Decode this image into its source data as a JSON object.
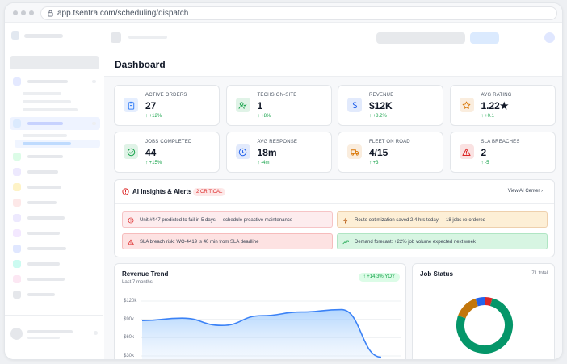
{
  "browser": {
    "url": "app.tsentra.com/scheduling/dispatch"
  },
  "page": {
    "title": "Dashboard"
  },
  "kpis": [
    {
      "label": "ACTIVE ORDERS",
      "value": "27",
      "change": "↑ +12%",
      "icon": "clipboard-icon",
      "color": "#3b82f6"
    },
    {
      "label": "TECHS ON-SITE",
      "value": "1",
      "change": "↑ +8%",
      "icon": "user-check-icon",
      "color": "#16a34a"
    },
    {
      "label": "REVENUE",
      "value": "$12K",
      "change": "↑ +8.2%",
      "icon": "dollar-icon",
      "color": "#2563eb"
    },
    {
      "label": "AVG RATING",
      "value": "1.22★",
      "change": "↑ +0.1",
      "icon": "star-icon",
      "color": "#d97706"
    },
    {
      "label": "JOBS COMPLETED",
      "value": "44",
      "change": "↑ +15%",
      "icon": "check-circle-icon",
      "color": "#16a34a"
    },
    {
      "label": "AVG RESPONSE",
      "value": "18m",
      "change": "↑ -4m",
      "icon": "clock-icon",
      "color": "#2563eb"
    },
    {
      "label": "FLEET ON ROAD",
      "value": "4/15",
      "change": "↑ +3",
      "icon": "truck-icon",
      "color": "#d97706"
    },
    {
      "label": "SLA BREACHES",
      "value": "2",
      "change": "↑ -5",
      "icon": "alert-triangle-icon",
      "color": "#dc2626"
    }
  ],
  "ai": {
    "title": "AI Insights & Alerts",
    "badge": "2 CRITICAL",
    "link": "View AI Center",
    "alerts": [
      {
        "text": "Unit #447 predicted to fail in 5 days — schedule proactive maintenance",
        "icon": "alert-circle-icon",
        "color": "#dc2626",
        "bg": "#fdecee"
      },
      {
        "text": "Route optimization saved 2.4 hrs today — 18 jobs re-ordered",
        "icon": "lightning-icon",
        "color": "#b45309",
        "bg": "#fdefd6"
      },
      {
        "text": "SLA breach risk: WO-4419 is 40 min from SLA deadline",
        "icon": "warning-icon",
        "color": "#dc2626",
        "bg": "#fde2e2"
      },
      {
        "text": "Demand forecast: +22% job volume expected next week",
        "icon": "trend-up-icon",
        "color": "#16a34a",
        "bg": "#d7f5e2"
      }
    ]
  },
  "revenue": {
    "title": "Revenue Trend",
    "subtitle": "Last 7 months",
    "badge": "↑ +14.3% YOY"
  },
  "jobStatus": {
    "title": "Job Status",
    "total": "71 total"
  },
  "chart_data": [
    {
      "type": "area",
      "title": "Revenue Trend",
      "subtitle": "Last 7 months",
      "y_ticks": [
        "$120k",
        "$90k",
        "$60k",
        "$30k"
      ],
      "ylim": [
        30,
        120
      ],
      "x": [
        0,
        1,
        2,
        3,
        4,
        5,
        6
      ],
      "values": [
        88,
        92,
        80,
        96,
        102,
        106,
        28
      ],
      "color": "#3b82f6"
    },
    {
      "type": "pie",
      "title": "Job Status",
      "total": "71 total",
      "values": [
        54,
        10,
        4,
        3
      ],
      "colors": [
        "#059669",
        "#c2760c",
        "#2563eb",
        "#dc2626"
      ]
    }
  ]
}
